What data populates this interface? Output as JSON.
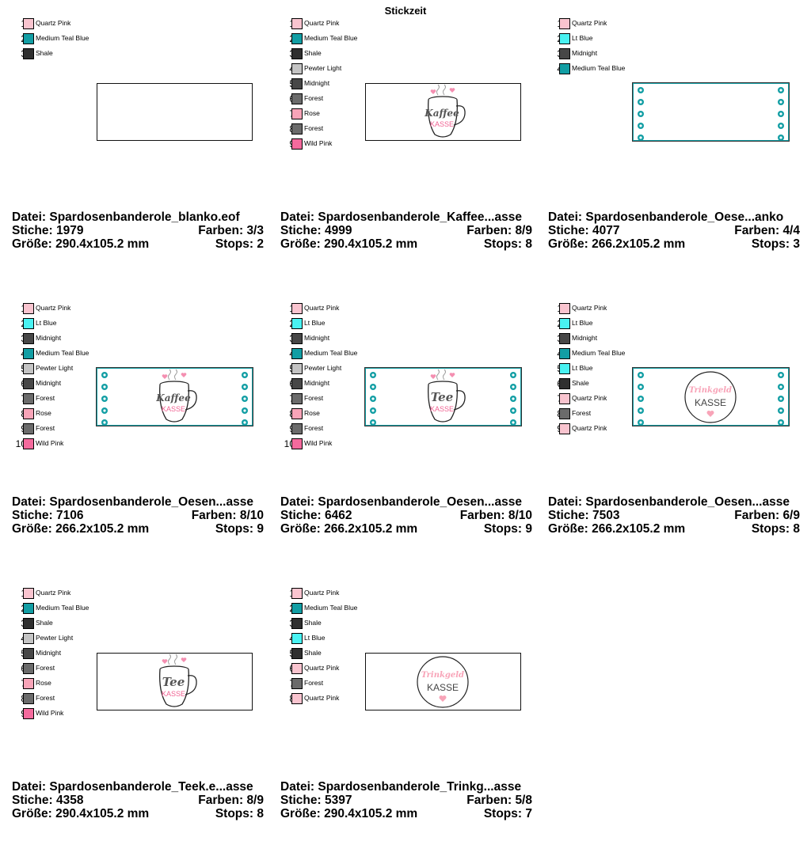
{
  "title": "Stickzeit",
  "labels": {
    "file": "Datei:",
    "stitches": "Stiche:",
    "colors": "Farben:",
    "size": "Größe:",
    "stops": "Stops:"
  },
  "palette": {
    "Quartz Pink": "#f9c4cf",
    "Medium Teal Blue": "#129ea4",
    "Shale": "#2f2f2f",
    "Pewter Light": "#c4c4c4",
    "Midnight": "#474747",
    "Forest": "#6b6b6b",
    "Rose": "#f8a4b8",
    "Wild Pink": "#f46a9d",
    "Lt Blue": "#49f2f2"
  },
  "designs": [
    {
      "file": "Spardosenbanderole_blanko.eof",
      "stitches": "1979",
      "colors_count": "3/3",
      "size": "290.4x105.2 mm",
      "stops": "2",
      "art": "blank",
      "threads": [
        {
          "num": "1",
          "name": "Quartz Pink"
        },
        {
          "num": "2",
          "name": "Medium Teal Blue"
        },
        {
          "num": "3",
          "name": "Shale"
        }
      ]
    },
    {
      "file": "Spardosenbanderole_Kaffee...asse",
      "stitches": "4999",
      "colors_count": "8/9",
      "size": "290.4x105.2 mm",
      "stops": "8",
      "art": "mug",
      "mug_word": "Kaffee",
      "mug_sub": "KASSE",
      "eyelets": false,
      "threads": [
        {
          "num": "1",
          "name": "Quartz Pink"
        },
        {
          "num": "2",
          "name": "Medium Teal Blue"
        },
        {
          "num": "3",
          "name": "Shale"
        },
        {
          "num": "4",
          "name": "Pewter Light"
        },
        {
          "num": "5",
          "name": "Midnight"
        },
        {
          "num": "6",
          "name": "Forest"
        },
        {
          "num": "7",
          "name": "Rose"
        },
        {
          "num": "8",
          "name": "Forest"
        },
        {
          "num": "9",
          "name": "Wild Pink"
        }
      ]
    },
    {
      "file": "Spardosenbanderole_Oese...anko",
      "stitches": "4077",
      "colors_count": "4/4",
      "size": "266.2x105.2 mm",
      "stops": "3",
      "art": "eyelets",
      "threads": [
        {
          "num": "1",
          "name": "Quartz Pink"
        },
        {
          "num": "2",
          "name": "Lt Blue"
        },
        {
          "num": "3",
          "name": "Midnight"
        },
        {
          "num": "4",
          "name": "Medium Teal Blue"
        }
      ]
    },
    {
      "file": "Spardosenbanderole_Oesen...asse",
      "stitches": "7106",
      "colors_count": "8/10",
      "size": "266.2x105.2 mm",
      "stops": "9",
      "art": "mug",
      "mug_word": "Kaffee",
      "mug_sub": "KASSE",
      "eyelets": true,
      "threads": [
        {
          "num": "1",
          "name": "Quartz Pink"
        },
        {
          "num": "2",
          "name": "Lt Blue"
        },
        {
          "num": "3",
          "name": "Midnight"
        },
        {
          "num": "4",
          "name": "Medium Teal Blue"
        },
        {
          "num": "5",
          "name": "Pewter Light"
        },
        {
          "num": "6",
          "name": "Midnight"
        },
        {
          "num": "7",
          "name": "Forest"
        },
        {
          "num": "8",
          "name": "Rose"
        },
        {
          "num": "9",
          "name": "Forest"
        },
        {
          "num": "10",
          "name": "Wild Pink"
        }
      ]
    },
    {
      "file": "Spardosenbanderole_Oesen...asse",
      "stitches": "6462",
      "colors_count": "8/10",
      "size": "266.2x105.2 mm",
      "stops": "9",
      "art": "mug",
      "mug_word": "Tee",
      "mug_sub": "KASSE",
      "eyelets": true,
      "threads": [
        {
          "num": "1",
          "name": "Quartz Pink"
        },
        {
          "num": "2",
          "name": "Lt Blue"
        },
        {
          "num": "3",
          "name": "Midnight"
        },
        {
          "num": "4",
          "name": "Medium Teal Blue"
        },
        {
          "num": "5",
          "name": "Pewter Light"
        },
        {
          "num": "6",
          "name": "Midnight"
        },
        {
          "num": "7",
          "name": "Forest"
        },
        {
          "num": "8",
          "name": "Rose"
        },
        {
          "num": "9",
          "name": "Forest"
        },
        {
          "num": "10",
          "name": "Wild Pink"
        }
      ]
    },
    {
      "file": "Spardosenbanderole_Oesen...asse",
      "stitches": "7503",
      "colors_count": "6/9",
      "size": "266.2x105.2 mm",
      "stops": "8",
      "art": "circle",
      "circle_word": "Trinkgeld",
      "circle_sub": "KASSE",
      "eyelets": true,
      "threads": [
        {
          "num": "1",
          "name": "Quartz Pink"
        },
        {
          "num": "2",
          "name": "Lt Blue"
        },
        {
          "num": "3",
          "name": "Midnight"
        },
        {
          "num": "4",
          "name": "Medium Teal Blue"
        },
        {
          "num": "5",
          "name": "Lt Blue"
        },
        {
          "num": "6",
          "name": "Shale"
        },
        {
          "num": "7",
          "name": "Quartz Pink"
        },
        {
          "num": "8",
          "name": "Forest"
        },
        {
          "num": "9",
          "name": "Quartz Pink"
        }
      ]
    },
    {
      "file": "Spardosenbanderole_Teek.e...asse",
      "stitches": "4358",
      "colors_count": "8/9",
      "size": "290.4x105.2 mm",
      "stops": "8",
      "art": "mug",
      "mug_word": "Tee",
      "mug_sub": "KASSE",
      "eyelets": false,
      "threads": [
        {
          "num": "1",
          "name": "Quartz Pink"
        },
        {
          "num": "2",
          "name": "Medium Teal Blue"
        },
        {
          "num": "3",
          "name": "Shale"
        },
        {
          "num": "4",
          "name": "Pewter Light"
        },
        {
          "num": "5",
          "name": "Midnight"
        },
        {
          "num": "6",
          "name": "Forest"
        },
        {
          "num": "7",
          "name": "Rose"
        },
        {
          "num": "8",
          "name": "Forest"
        },
        {
          "num": "9",
          "name": "Wild Pink"
        }
      ]
    },
    {
      "file": "Spardosenbanderole_Trinkg...asse",
      "stitches": "5397",
      "colors_count": "5/8",
      "size": "290.4x105.2 mm",
      "stops": "7",
      "art": "circle",
      "circle_word": "Trinkgeld",
      "circle_sub": "KASSE",
      "eyelets": false,
      "threads": [
        {
          "num": "1",
          "name": "Quartz Pink"
        },
        {
          "num": "2",
          "name": "Medium Teal Blue"
        },
        {
          "num": "3",
          "name": "Shale"
        },
        {
          "num": "4",
          "name": "Lt Blue"
        },
        {
          "num": "5",
          "name": "Shale"
        },
        {
          "num": "6",
          "name": "Quartz Pink"
        },
        {
          "num": "7",
          "name": "Forest"
        },
        {
          "num": "8",
          "name": "Quartz Pink"
        }
      ]
    }
  ]
}
